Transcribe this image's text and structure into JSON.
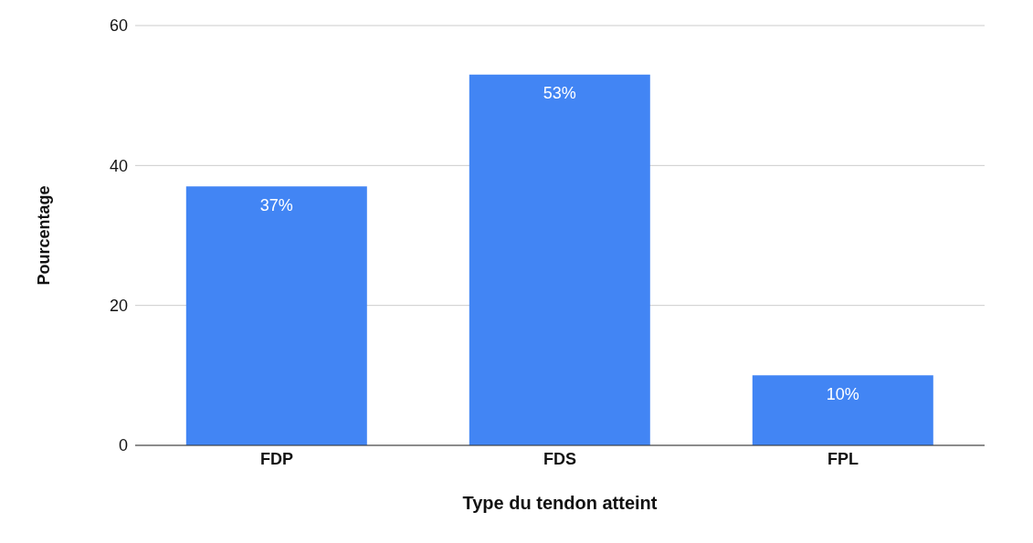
{
  "chart_data": {
    "type": "bar",
    "xlabel": "Type du tendon atteint",
    "ylabel": "Pourcentage",
    "categories": [
      "FDP",
      "FDS",
      "FPL"
    ],
    "values": [
      37,
      53,
      10
    ],
    "value_labels": [
      "37%",
      "53%",
      "10%"
    ],
    "color": "#4285f4",
    "ylim": [
      0,
      60
    ],
    "yticks": [
      0,
      20,
      40,
      60
    ],
    "grid": "y"
  }
}
